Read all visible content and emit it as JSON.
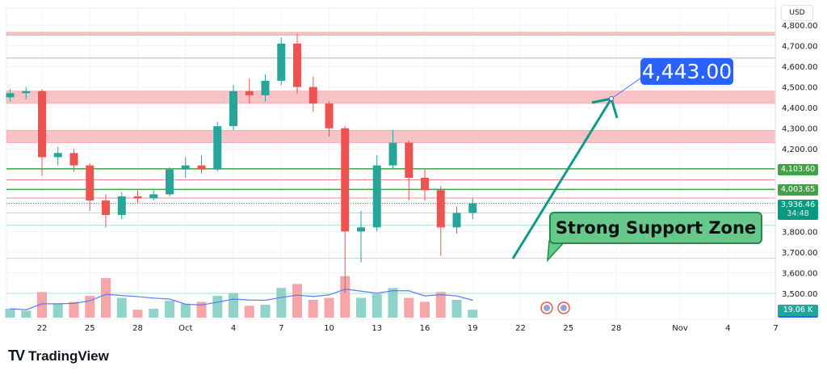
{
  "header": {
    "currency": "USD"
  },
  "branding": {
    "name": "TradingView"
  },
  "annotations": {
    "target_label": "4,443.00",
    "support_label": "Strong Support Zone"
  },
  "price_tags": {
    "level1": "4,103.60",
    "level2": "4,003.65",
    "last_price": "3,936.46",
    "countdown": "34:48",
    "volume": "19.06 K"
  },
  "colors": {
    "up": "#26a69a",
    "down": "#ef5350",
    "zone": "#f8c3c6",
    "green_line": "#43a047",
    "accent": "#2962ff",
    "arrow": "#0f9a84"
  },
  "chart_data": {
    "type": "candlestick",
    "title": "",
    "ylim": [
      3450,
      4850
    ],
    "y_ticks": [
      "4,800.00",
      "4,700.00",
      "4,600.00",
      "4,500.00",
      "4,400.00",
      "4,300.00",
      "4,200.00",
      "3,800.00",
      "3,700.00",
      "3,600.00",
      "3,500.00"
    ],
    "y_tick_values": [
      4800,
      4700,
      4600,
      4500,
      4400,
      4300,
      4200,
      3800,
      3700,
      3600,
      3500
    ],
    "x_ticks": [
      "22",
      "25",
      "28",
      "Oct",
      "4",
      "7",
      "10",
      "13",
      "16",
      "19",
      "22",
      "25",
      "28",
      "Nov",
      "4",
      "7"
    ],
    "x_tick_days": [
      0,
      3,
      6,
      9,
      12,
      15,
      18,
      21,
      24,
      27,
      30,
      33,
      36,
      40,
      43,
      46
    ],
    "day_zero": "Sep 22",
    "candles": [
      {
        "d": -2,
        "o": 4450,
        "h": 4490,
        "l": 4430,
        "c": 4470,
        "v": 9
      },
      {
        "d": -1,
        "o": 4470,
        "h": 4500,
        "l": 4440,
        "c": 4480,
        "v": 7
      },
      {
        "d": 0,
        "o": 4480,
        "h": 4490,
        "l": 4070,
        "c": 4160,
        "v": 26
      },
      {
        "d": 1,
        "o": 4160,
        "h": 4210,
        "l": 4120,
        "c": 4180,
        "v": 14
      },
      {
        "d": 2,
        "o": 4180,
        "h": 4200,
        "l": 4090,
        "c": 4120,
        "v": 16
      },
      {
        "d": 3,
        "o": 4120,
        "h": 4130,
        "l": 3900,
        "c": 3950,
        "v": 22
      },
      {
        "d": 4,
        "o": 3950,
        "h": 3980,
        "l": 3820,
        "c": 3880,
        "v": 40
      },
      {
        "d": 5,
        "o": 3880,
        "h": 3990,
        "l": 3860,
        "c": 3970,
        "v": 20
      },
      {
        "d": 6,
        "o": 3970,
        "h": 4000,
        "l": 3940,
        "c": 3960,
        "v": 8
      },
      {
        "d": 7,
        "o": 3960,
        "h": 4000,
        "l": 3950,
        "c": 3980,
        "v": 9
      },
      {
        "d": 8,
        "o": 3980,
        "h": 4110,
        "l": 3970,
        "c": 4100,
        "v": 17
      },
      {
        "d": 9,
        "o": 4100,
        "h": 4160,
        "l": 4060,
        "c": 4120,
        "v": 14
      },
      {
        "d": 10,
        "o": 4120,
        "h": 4170,
        "l": 4080,
        "c": 4100,
        "v": 16
      },
      {
        "d": 11,
        "o": 4100,
        "h": 4330,
        "l": 4090,
        "c": 4310,
        "v": 22
      },
      {
        "d": 12,
        "o": 4310,
        "h": 4510,
        "l": 4290,
        "c": 4480,
        "v": 25
      },
      {
        "d": 13,
        "o": 4480,
        "h": 4540,
        "l": 4420,
        "c": 4460,
        "v": 12
      },
      {
        "d": 14,
        "o": 4460,
        "h": 4560,
        "l": 4430,
        "c": 4530,
        "v": 13
      },
      {
        "d": 15,
        "o": 4530,
        "h": 4740,
        "l": 4510,
        "c": 4710,
        "v": 30
      },
      {
        "d": 16,
        "o": 4710,
        "h": 4760,
        "l": 4470,
        "c": 4500,
        "v": 34
      },
      {
        "d": 17,
        "o": 4500,
        "h": 4550,
        "l": 4380,
        "c": 4420,
        "v": 18
      },
      {
        "d": 18,
        "o": 4420,
        "h": 4430,
        "l": 4260,
        "c": 4300,
        "v": 20
      },
      {
        "d": 19,
        "o": 4300,
        "h": 4310,
        "l": 3500,
        "c": 3800,
        "v": 42
      },
      {
        "d": 20,
        "o": 3800,
        "h": 3900,
        "l": 3650,
        "c": 3820,
        "v": 20
      },
      {
        "d": 21,
        "o": 3820,
        "h": 4170,
        "l": 3800,
        "c": 4120,
        "v": 24
      },
      {
        "d": 22,
        "o": 4120,
        "h": 4290,
        "l": 4100,
        "c": 4230,
        "v": 30
      },
      {
        "d": 23,
        "o": 4230,
        "h": 4240,
        "l": 3950,
        "c": 4060,
        "v": 20
      },
      {
        "d": 24,
        "o": 4060,
        "h": 4100,
        "l": 3950,
        "c": 4000,
        "v": 16
      },
      {
        "d": 25,
        "o": 4000,
        "h": 4020,
        "l": 3680,
        "c": 3820,
        "v": 26
      },
      {
        "d": 26,
        "o": 3820,
        "h": 3920,
        "l": 3790,
        "c": 3890,
        "v": 18
      },
      {
        "d": 27,
        "o": 3890,
        "h": 3960,
        "l": 3860,
        "c": 3936.46,
        "v": 8
      }
    ],
    "red_zones": [
      [
        4420,
        4480
      ],
      [
        4230,
        4290
      ],
      [
        4750,
        4765
      ]
    ],
    "red_lines": [
      4050,
      3962
    ],
    "gray_lines": [
      4640
    ],
    "green_lines": [
      4103.6,
      4003.65
    ],
    "light_green_lines": [
      3890,
      3830,
      3670,
      3500
    ],
    "target_price": 4443,
    "last_price": 3936.46
  }
}
